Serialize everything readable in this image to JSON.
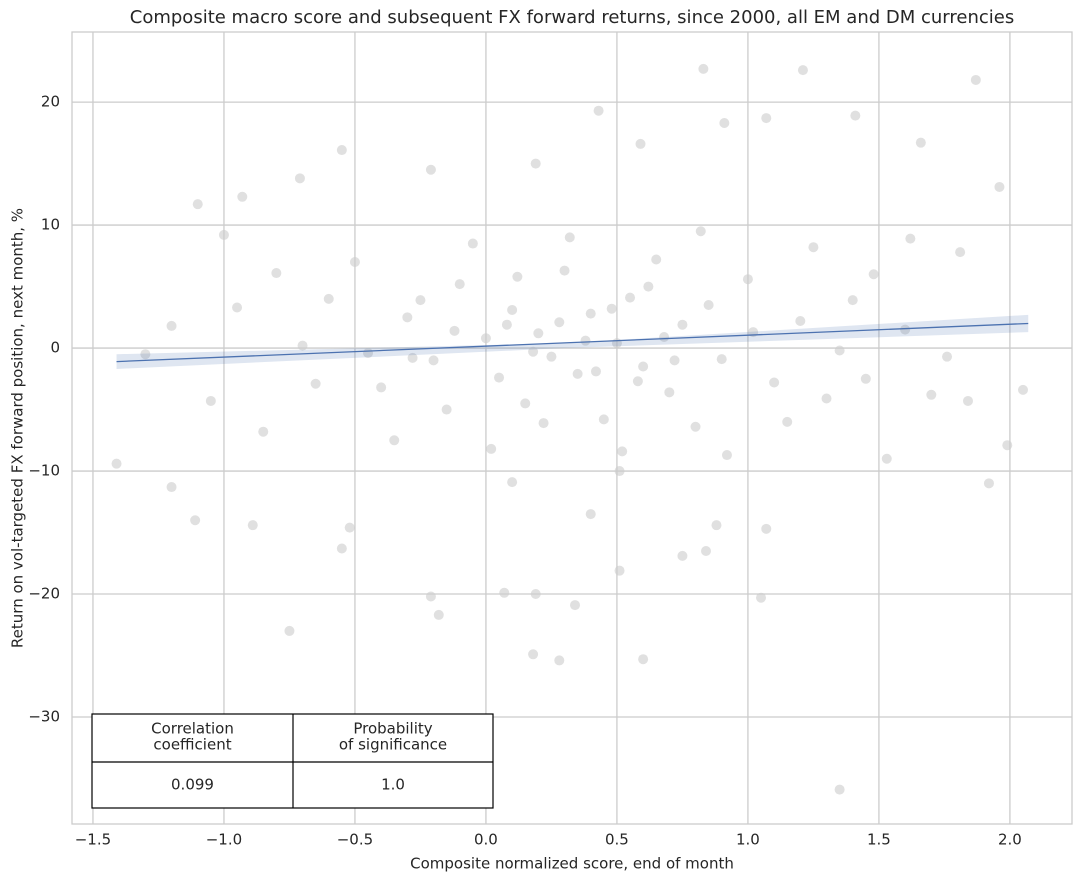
{
  "chart_data": {
    "type": "scatter",
    "title": "Composite macro score and subsequent FX forward returns, since 2000, all EM and DM currencies",
    "xlabel": "Composite normalized score, end of month",
    "ylabel": "Return on vol-targeted FX forward position, next month, %",
    "color": "#cccccc",
    "line_color": "#4c72b0",
    "band_color": "#4c72b0",
    "grid": true,
    "xlim": [
      -1.58,
      2.237
    ],
    "ylim": [
      -38.7,
      25.7
    ],
    "xticks": [
      {
        "value": -1.5,
        "label": "−1.5"
      },
      {
        "value": -1.0,
        "label": "−1.0"
      },
      {
        "value": -0.5,
        "label": "−0.5"
      },
      {
        "value": 0,
        "label": "0.0"
      },
      0.5,
      {
        "value": 1.0,
        "label": "1.0"
      },
      1.5,
      {
        "value": 2.0,
        "label": "2.0"
      }
    ],
    "yticks": [
      {
        "value": -30,
        "label": "−30"
      },
      {
        "value": -20,
        "label": "−20"
      },
      {
        "value": -10,
        "label": "−10"
      },
      0,
      10,
      20
    ],
    "x": [
      0.83,
      1.21,
      1.87,
      0.43,
      1.07,
      1.41,
      0.91,
      -0.55,
      1.66,
      0.59,
      -0.21,
      0.19,
      1.96,
      -0.71,
      -1.1,
      -0.93,
      -1.41,
      -1.11,
      -1.2,
      -0.89,
      -0.75,
      -0.21,
      -0.18,
      0.07,
      0.19,
      0.18,
      0.28,
      0.34,
      0.6,
      0.51,
      0.88,
      1.07,
      1.05,
      1.35,
      1.53,
      1.92,
      2.05,
      1.99,
      1.76,
      1.84,
      1.81,
      1.62,
      1.48,
      -0.55,
      -0.52,
      0.1,
      0.4,
      0.75,
      0.84,
      0.51,
      -1.0,
      -0.8,
      -0.6,
      -0.4,
      -0.3,
      -0.2,
      -0.1,
      0.0,
      0.05,
      0.1,
      0.15,
      0.2,
      0.25,
      0.3,
      0.35,
      0.4,
      0.45,
      0.5,
      0.55,
      0.6,
      0.65,
      0.7,
      0.75,
      0.8,
      0.85,
      0.9,
      1.0,
      1.1,
      1.2,
      1.3,
      1.4,
      -1.3,
      -1.2,
      -1.05,
      -0.95,
      -0.85,
      -0.7,
      -0.65,
      -0.5,
      -0.45,
      -0.35,
      -0.25,
      -0.15,
      -0.05,
      0.02,
      0.12,
      0.22,
      0.32,
      0.42,
      0.52,
      0.62,
      0.72,
      0.82,
      0.92,
      1.02,
      1.15,
      1.25,
      1.35,
      1.45,
      1.6,
      1.7,
      0.08,
      0.18,
      0.28,
      0.38,
      -0.12,
      -0.28,
      0.48,
      0.58,
      0.68
    ],
    "values": [
      22.7,
      22.6,
      21.8,
      19.3,
      18.7,
      18.9,
      18.3,
      16.1,
      16.7,
      16.6,
      14.5,
      15.0,
      13.1,
      13.8,
      11.7,
      12.3,
      -9.4,
      -14.0,
      -11.3,
      -14.4,
      -23.0,
      -20.2,
      -21.7,
      -19.9,
      -20.0,
      -24.9,
      -25.4,
      -20.9,
      -25.3,
      -18.1,
      -14.4,
      -14.7,
      -20.3,
      -35.9,
      -9.0,
      -11.0,
      -3.4,
      -7.9,
      -0.7,
      -4.3,
      7.8,
      8.9,
      6.0,
      -16.3,
      -14.6,
      -10.9,
      -13.5,
      -16.9,
      -16.5,
      -10.0,
      9.2,
      6.1,
      4.0,
      -3.2,
      2.5,
      -1.0,
      5.2,
      0.8,
      -2.4,
      3.1,
      -4.5,
      1.2,
      -0.7,
      6.3,
      -2.1,
      2.8,
      -5.8,
      0.4,
      4.1,
      -1.5,
      7.2,
      -3.6,
      1.9,
      -6.4,
      3.5,
      -0.9,
      5.6,
      -2.8,
      2.2,
      -4.1,
      3.9,
      -0.5,
      1.8,
      -4.3,
      3.3,
      -6.8,
      0.2,
      -2.9,
      7.0,
      -0.4,
      -7.5,
      3.9,
      -5.0,
      8.5,
      -8.2,
      5.8,
      -6.1,
      9.0,
      -1.9,
      -8.4,
      5.0,
      -1.0,
      9.5,
      -8.7,
      1.3,
      -6.0,
      8.2,
      -0.2,
      -2.5,
      1.5,
      -3.8,
      1.9,
      -0.3,
      2.1,
      0.6,
      1.4,
      -0.8,
      3.2,
      -2.7,
      0.9
    ],
    "regression": {
      "x": [
        -1.41,
        2.07
      ],
      "values": [
        -1.1,
        2.0
      ]
    },
    "band": {
      "x": [
        -1.41,
        0.3,
        2.07
      ],
      "lower": [
        -1.7,
        0.0,
        1.3
      ],
      "upper": [
        -0.5,
        0.4,
        2.7
      ]
    },
    "table": {
      "header": [
        [
          "Correlation",
          "coefficient"
        ],
        [
          "Probability",
          "of significance"
        ]
      ],
      "row": [
        "0.099",
        "1.0"
      ]
    }
  }
}
